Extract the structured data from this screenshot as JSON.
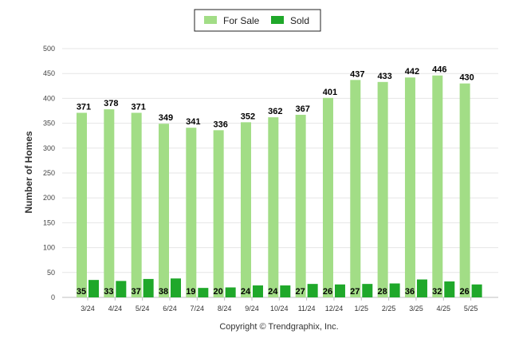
{
  "chart_data": {
    "type": "bar",
    "title": "",
    "xlabel": "",
    "ylabel": "Number of Homes",
    "ylim": [
      0,
      500
    ],
    "yticks": [
      0,
      50,
      100,
      150,
      200,
      250,
      300,
      350,
      400,
      450,
      500
    ],
    "grid": true,
    "legend_position": "top-center",
    "categories": [
      "3/24",
      "4/24",
      "5/24",
      "6/24",
      "7/24",
      "8/24",
      "9/24",
      "10/24",
      "11/24",
      "12/24",
      "1/25",
      "2/25",
      "3/25",
      "4/25",
      "5/25"
    ],
    "series": [
      {
        "name": "For Sale",
        "color": "#a2dd86",
        "values": [
          371,
          378,
          371,
          349,
          341,
          336,
          352,
          362,
          367,
          401,
          437,
          433,
          442,
          446,
          430
        ]
      },
      {
        "name": "Sold",
        "color": "#1fa82a",
        "values": [
          35,
          33,
          37,
          38,
          19,
          20,
          24,
          24,
          27,
          26,
          27,
          28,
          36,
          32,
          26
        ]
      }
    ]
  },
  "footer": {
    "copyright": "Copyright © Trendgraphix, Inc."
  }
}
